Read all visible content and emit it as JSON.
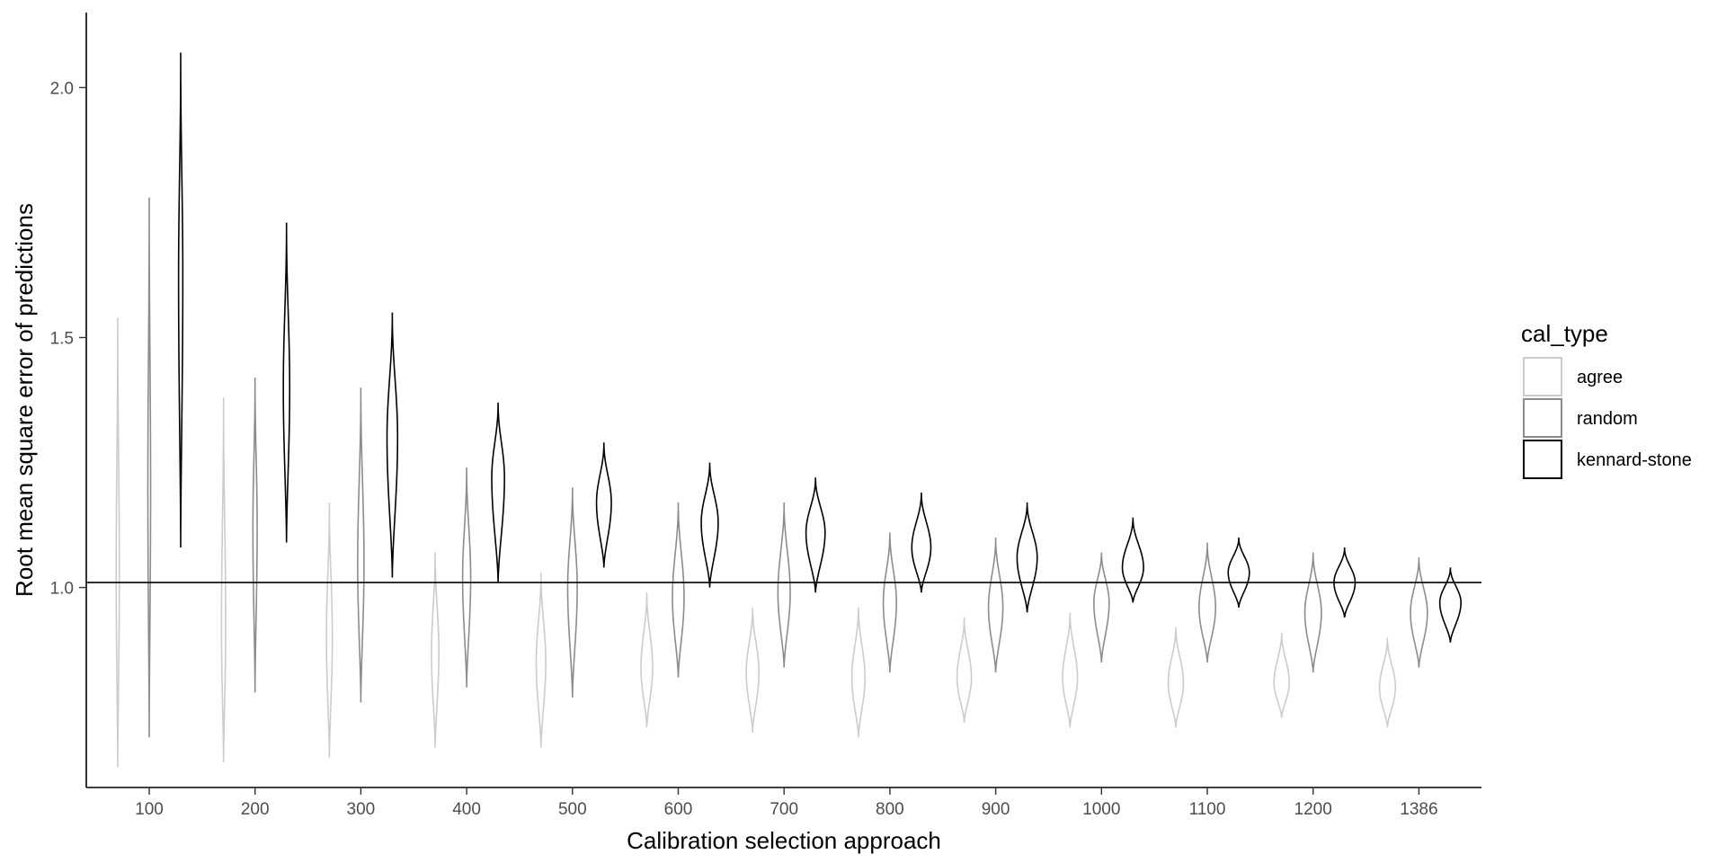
{
  "chart_data": {
    "type": "violin",
    "xlabel": "Calibration selection approach",
    "ylabel": "Root mean square error of predictions",
    "categories": [
      "100",
      "200",
      "300",
      "400",
      "500",
      "600",
      "700",
      "800",
      "900",
      "1000",
      "1100",
      "1200",
      "1386"
    ],
    "y_ticks": [
      1.0,
      1.5,
      2.0
    ],
    "y_tick_labels": [
      "1.0",
      "1.5",
      "2.0"
    ],
    "ylim": [
      0.6,
      2.15
    ],
    "reference_line_y": 1.01,
    "grid": false,
    "legend": {
      "title": "cal_type",
      "position": "right",
      "entries": [
        {
          "label": "agree",
          "color": "#cccccc"
        },
        {
          "label": "random",
          "color": "#8c8c8c"
        },
        {
          "label": "kennard-stone",
          "color": "#000000"
        }
      ]
    },
    "series": [
      {
        "name": "agree",
        "color": "#cccccc",
        "min": [
          0.64,
          0.65,
          0.66,
          0.68,
          0.68,
          0.72,
          0.71,
          0.7,
          0.73,
          0.72,
          0.72,
          0.74,
          0.72
        ],
        "median": [
          1.03,
          0.92,
          0.9,
          0.87,
          0.85,
          0.84,
          0.83,
          0.82,
          0.82,
          0.82,
          0.81,
          0.81,
          0.8
        ],
        "max": [
          1.54,
          1.38,
          1.17,
          1.07,
          1.03,
          0.99,
          0.96,
          0.96,
          0.94,
          0.95,
          0.92,
          0.91,
          0.9
        ],
        "halfwidth": [
          0.015,
          0.02,
          0.028,
          0.035,
          0.045,
          0.055,
          0.06,
          0.062,
          0.068,
          0.07,
          0.072,
          0.072,
          0.075
        ]
      },
      {
        "name": "random",
        "color": "#8c8c8c",
        "min": [
          0.7,
          0.79,
          0.77,
          0.8,
          0.78,
          0.82,
          0.84,
          0.83,
          0.83,
          0.85,
          0.85,
          0.83,
          0.84
        ],
        "median": [
          1.2,
          1.12,
          1.05,
          1.02,
          1.0,
          0.98,
          0.99,
          0.97,
          0.96,
          0.97,
          0.96,
          0.95,
          0.95
        ],
        "max": [
          1.78,
          1.42,
          1.4,
          1.24,
          1.2,
          1.17,
          1.17,
          1.11,
          1.1,
          1.07,
          1.09,
          1.07,
          1.06
        ],
        "halfwidth": [
          0.013,
          0.02,
          0.03,
          0.038,
          0.045,
          0.055,
          0.058,
          0.062,
          0.068,
          0.072,
          0.078,
          0.078,
          0.08
        ]
      },
      {
        "name": "kennard-stone",
        "color": "#000000",
        "min": [
          1.08,
          1.09,
          1.02,
          1.01,
          1.04,
          1.0,
          0.99,
          0.99,
          0.95,
          0.97,
          0.96,
          0.94,
          0.89
        ],
        "median": [
          1.62,
          1.4,
          1.3,
          1.22,
          1.17,
          1.13,
          1.11,
          1.08,
          1.06,
          1.04,
          1.03,
          1.01,
          0.97
        ],
        "max": [
          2.07,
          1.73,
          1.55,
          1.37,
          1.29,
          1.25,
          1.22,
          1.19,
          1.17,
          1.14,
          1.1,
          1.08,
          1.04
        ],
        "halfwidth": [
          0.02,
          0.03,
          0.05,
          0.06,
          0.07,
          0.08,
          0.09,
          0.09,
          0.095,
          0.1,
          0.1,
          0.1,
          0.1
        ]
      }
    ]
  }
}
